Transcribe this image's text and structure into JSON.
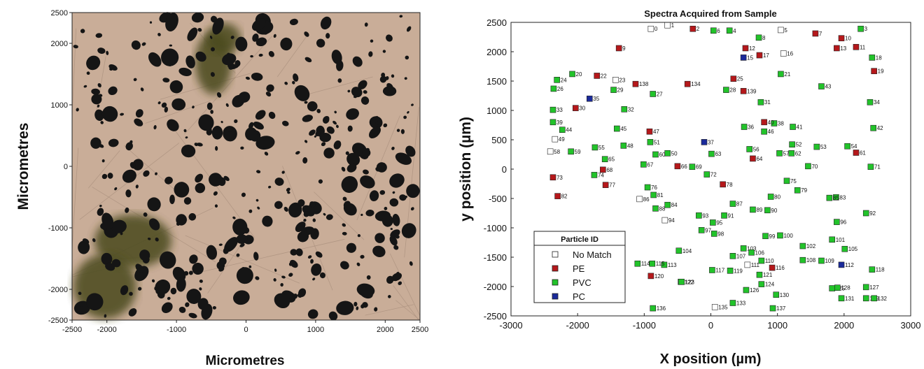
{
  "colors": {
    "no_match": "#ffffff",
    "pe": "#b5181b",
    "pvc": "#22c32a",
    "pc": "#1a2a9a",
    "micro_bg": "#c9ad98",
    "micro_particle": "#151515",
    "micro_green": "#4a4a1a"
  },
  "chart_data": [
    {
      "type": "image",
      "xlabel": "Micrometres",
      "ylabel": "Micrometres",
      "xlim": [
        -2500,
        2500
      ],
      "ylim": [
        -2500,
        2500
      ],
      "x_ticks": [
        "-2500",
        "-2000",
        "-1000",
        "0",
        "1000",
        "2000",
        "2500"
      ],
      "y_ticks": [
        "2500",
        "2000",
        "1000",
        "0",
        "-1000",
        "-2000",
        "-2500"
      ]
    },
    {
      "type": "scatter",
      "title": "Spectra Acquired from Sample",
      "xlabel": "X position (µm)",
      "ylabel": "y position (µm)",
      "xlim": [
        -3000,
        3000
      ],
      "ylim": [
        -2500,
        2500
      ],
      "x_ticks": [
        "-3000",
        "-2000",
        "-1000",
        "0",
        "1000",
        "2000",
        "3000"
      ],
      "y_ticks": [
        "2500",
        "2000",
        "1500",
        "1000",
        "500",
        "0",
        "-500",
        "-1000",
        "-1500",
        "-2000",
        "-2500"
      ],
      "legend_title": "Particle ID",
      "legend_position": "bottom-left",
      "series": [
        {
          "name": "No Match",
          "key": "no_match"
        },
        {
          "name": "PE",
          "key": "pe"
        },
        {
          "name": "PVC",
          "key": "pvc"
        },
        {
          "name": "PC",
          "key": "pc"
        }
      ],
      "points": [
        {
          "id": "0",
          "t": "no_match",
          "x": -900,
          "y": 2390
        },
        {
          "id": "1",
          "t": "no_match",
          "x": -650,
          "y": 2450
        },
        {
          "id": "2",
          "t": "pe",
          "x": -270,
          "y": 2390
        },
        {
          "id": "3",
          "t": "pvc",
          "x": 2250,
          "y": 2390
        },
        {
          "id": "4",
          "t": "pvc",
          "x": 280,
          "y": 2360
        },
        {
          "id": "5",
          "t": "no_match",
          "x": 1050,
          "y": 2370
        },
        {
          "id": "6",
          "t": "pvc",
          "x": 40,
          "y": 2360
        },
        {
          "id": "7",
          "t": "pe",
          "x": 1570,
          "y": 2310
        },
        {
          "id": "8",
          "t": "pvc",
          "x": 720,
          "y": 2240
        },
        {
          "id": "9",
          "t": "pe",
          "x": -1380,
          "y": 2060
        },
        {
          "id": "10",
          "t": "pe",
          "x": 1960,
          "y": 2230
        },
        {
          "id": "11",
          "t": "pe",
          "x": 2180,
          "y": 2080
        },
        {
          "id": "12",
          "t": "pe",
          "x": 520,
          "y": 2060
        },
        {
          "id": "13",
          "t": "pe",
          "x": 1890,
          "y": 2060
        },
        {
          "id": "15",
          "t": "pc",
          "x": 490,
          "y": 1900
        },
        {
          "id": "16",
          "t": "no_match",
          "x": 1090,
          "y": 1970
        },
        {
          "id": "17",
          "t": "pe",
          "x": 730,
          "y": 1940
        },
        {
          "id": "18",
          "t": "pvc",
          "x": 2420,
          "y": 1900
        },
        {
          "id": "19",
          "t": "pe",
          "x": 2450,
          "y": 1670
        },
        {
          "id": "20",
          "t": "pvc",
          "x": -2080,
          "y": 1620
        },
        {
          "id": "21",
          "t": "pvc",
          "x": 1050,
          "y": 1620
        },
        {
          "id": "22",
          "t": "pe",
          "x": -1710,
          "y": 1590
        },
        {
          "id": "23",
          "t": "no_match",
          "x": -1430,
          "y": 1520
        },
        {
          "id": "24",
          "t": "pvc",
          "x": -2310,
          "y": 1520
        },
        {
          "id": "25",
          "t": "pe",
          "x": 340,
          "y": 1540
        },
        {
          "id": "26",
          "t": "pvc",
          "x": -2360,
          "y": 1370
        },
        {
          "id": "27",
          "t": "pvc",
          "x": -870,
          "y": 1280
        },
        {
          "id": "28",
          "t": "pvc",
          "x": 230,
          "y": 1350
        },
        {
          "id": "29",
          "t": "pvc",
          "x": -1460,
          "y": 1350
        },
        {
          "id": "30",
          "t": "pe",
          "x": -2030,
          "y": 1040
        },
        {
          "id": "31",
          "t": "pvc",
          "x": 750,
          "y": 1140
        },
        {
          "id": "32",
          "t": "pvc",
          "x": -1300,
          "y": 1020
        },
        {
          "id": "33",
          "t": "pvc",
          "x": -2370,
          "y": 1010
        },
        {
          "id": "34",
          "t": "pvc",
          "x": 2390,
          "y": 1140
        },
        {
          "id": "35",
          "t": "pc",
          "x": -1820,
          "y": 1200
        },
        {
          "id": "36",
          "t": "pvc",
          "x": 500,
          "y": 720
        },
        {
          "id": "37",
          "t": "pc",
          "x": -100,
          "y": 460
        },
        {
          "id": "38",
          "t": "pvc",
          "x": 950,
          "y": 780
        },
        {
          "id": "39",
          "t": "pvc",
          "x": -2370,
          "y": 800
        },
        {
          "id": "40",
          "t": "pe",
          "x": 800,
          "y": 800
        },
        {
          "id": "41",
          "t": "pvc",
          "x": 1230,
          "y": 720
        },
        {
          "id": "42",
          "t": "pvc",
          "x": 2440,
          "y": 700
        },
        {
          "id": "43",
          "t": "pvc",
          "x": 1660,
          "y": 1410
        },
        {
          "id": "44",
          "t": "pvc",
          "x": -2230,
          "y": 670
        },
        {
          "id": "45",
          "t": "pvc",
          "x": -1410,
          "y": 690
        },
        {
          "id": "46",
          "t": "pvc",
          "x": 800,
          "y": 640
        },
        {
          "id": "47",
          "t": "pe",
          "x": -920,
          "y": 640
        },
        {
          "id": "48",
          "t": "pvc",
          "x": -1310,
          "y": 400
        },
        {
          "id": "49",
          "t": "no_match",
          "x": -2340,
          "y": 510
        },
        {
          "id": "50",
          "t": "pvc",
          "x": -650,
          "y": 270
        },
        {
          "id": "51",
          "t": "pvc",
          "x": -910,
          "y": 460
        },
        {
          "id": "52",
          "t": "pvc",
          "x": 1220,
          "y": 420
        },
        {
          "id": "53",
          "t": "pvc",
          "x": 1590,
          "y": 380
        },
        {
          "id": "54",
          "t": "pvc",
          "x": 2050,
          "y": 390
        },
        {
          "id": "55",
          "t": "pvc",
          "x": -1740,
          "y": 370
        },
        {
          "id": "56",
          "t": "pvc",
          "x": 580,
          "y": 340
        },
        {
          "id": "57",
          "t": "pvc",
          "x": 1030,
          "y": 270
        },
        {
          "id": "58",
          "t": "no_match",
          "x": -2410,
          "y": 300
        },
        {
          "id": "59",
          "t": "pvc",
          "x": -2100,
          "y": 300
        },
        {
          "id": "60",
          "t": "pvc",
          "x": -830,
          "y": 250
        },
        {
          "id": "61",
          "t": "pe",
          "x": 2180,
          "y": 280
        },
        {
          "id": "62",
          "t": "pvc",
          "x": 1210,
          "y": 270
        },
        {
          "id": "63",
          "t": "pvc",
          "x": 10,
          "y": 260
        },
        {
          "id": "64",
          "t": "pe",
          "x": 630,
          "y": 180
        },
        {
          "id": "65",
          "t": "pvc",
          "x": -1590,
          "y": 170
        },
        {
          "id": "66",
          "t": "pe",
          "x": -500,
          "y": 50
        },
        {
          "id": "67",
          "t": "pvc",
          "x": -1010,
          "y": 80
        },
        {
          "id": "68",
          "t": "pe",
          "x": -1620,
          "y": -10
        },
        {
          "id": "69",
          "t": "pvc",
          "x": -280,
          "y": 40
        },
        {
          "id": "70",
          "t": "pvc",
          "x": 1460,
          "y": 50
        },
        {
          "id": "71",
          "t": "pvc",
          "x": 2400,
          "y": 40
        },
        {
          "id": "72",
          "t": "pvc",
          "x": -60,
          "y": -90
        },
        {
          "id": "73",
          "t": "pe",
          "x": -2370,
          "y": -140
        },
        {
          "id": "74",
          "t": "pvc",
          "x": -1750,
          "y": -100
        },
        {
          "id": "75",
          "t": "pvc",
          "x": 1140,
          "y": -200
        },
        {
          "id": "76",
          "t": "pvc",
          "x": -950,
          "y": -310
        },
        {
          "id": "77",
          "t": "pe",
          "x": -1580,
          "y": -270
        },
        {
          "id": "78",
          "t": "pe",
          "x": 180,
          "y": -260
        },
        {
          "id": "79",
          "t": "pvc",
          "x": 1300,
          "y": -360
        },
        {
          "id": "80",
          "t": "pvc",
          "x": 900,
          "y": -470
        },
        {
          "id": "81",
          "t": "pvc",
          "x": -860,
          "y": -440
        },
        {
          "id": "82",
          "t": "pe",
          "x": -2300,
          "y": -460
        },
        {
          "id": "83",
          "t": "pvc",
          "x": 1880,
          "y": -480
        },
        {
          "id": "84",
          "t": "pvc",
          "x": -650,
          "y": -610
        },
        {
          "id": "85",
          "t": "pvc",
          "x": 1780,
          "y": -490
        },
        {
          "id": "86",
          "t": "no_match",
          "x": -1070,
          "y": -510
        },
        {
          "id": "87",
          "t": "pvc",
          "x": 330,
          "y": -590
        },
        {
          "id": "88",
          "t": "pvc",
          "x": -830,
          "y": -670
        },
        {
          "id": "89",
          "t": "pvc",
          "x": 630,
          "y": -690
        },
        {
          "id": "90",
          "t": "pvc",
          "x": 850,
          "y": -700
        },
        {
          "id": "91",
          "t": "pvc",
          "x": 200,
          "y": -790
        },
        {
          "id": "92",
          "t": "pvc",
          "x": 2330,
          "y": -750
        },
        {
          "id": "93",
          "t": "pvc",
          "x": -180,
          "y": -790
        },
        {
          "id": "94",
          "t": "no_match",
          "x": -690,
          "y": -870
        },
        {
          "id": "95",
          "t": "pvc",
          "x": 30,
          "y": -910
        },
        {
          "id": "96",
          "t": "pvc",
          "x": 1890,
          "y": -900
        },
        {
          "id": "97",
          "t": "pvc",
          "x": -140,
          "y": -1040
        },
        {
          "id": "98",
          "t": "pvc",
          "x": 50,
          "y": -1100
        },
        {
          "id": "99",
          "t": "pvc",
          "x": 820,
          "y": -1140
        },
        {
          "id": "100",
          "t": "pvc",
          "x": 1040,
          "y": -1130
        },
        {
          "id": "101",
          "t": "pvc",
          "x": 1820,
          "y": -1200
        },
        {
          "id": "102",
          "t": "pvc",
          "x": 1380,
          "y": -1310
        },
        {
          "id": "103",
          "t": "pvc",
          "x": 490,
          "y": -1350
        },
        {
          "id": "104",
          "t": "pvc",
          "x": -480,
          "y": -1390
        },
        {
          "id": "105",
          "t": "pvc",
          "x": 2010,
          "y": -1360
        },
        {
          "id": "106",
          "t": "pvc",
          "x": 610,
          "y": -1420
        },
        {
          "id": "107",
          "t": "pvc",
          "x": 330,
          "y": -1480
        },
        {
          "id": "108",
          "t": "pvc",
          "x": 1380,
          "y": -1550
        },
        {
          "id": "109",
          "t": "pvc",
          "x": 1660,
          "y": -1560
        },
        {
          "id": "110",
          "t": "pvc",
          "x": 760,
          "y": -1560
        },
        {
          "id": "111",
          "t": "no_match",
          "x": 550,
          "y": -1630
        },
        {
          "id": "112",
          "t": "pc",
          "x": 1960,
          "y": -1630
        },
        {
          "id": "113",
          "t": "pvc",
          "x": -700,
          "y": -1630
        },
        {
          "id": "114",
          "t": "pvc",
          "x": -1100,
          "y": -1610
        },
        {
          "id": "115",
          "t": "pvc",
          "x": -880,
          "y": -1610
        },
        {
          "id": "116",
          "t": "pe",
          "x": 920,
          "y": -1680
        },
        {
          "id": "117",
          "t": "pvc",
          "x": 20,
          "y": -1720
        },
        {
          "id": "118",
          "t": "pvc",
          "x": 2420,
          "y": -1710
        },
        {
          "id": "119",
          "t": "pvc",
          "x": 290,
          "y": -1730
        },
        {
          "id": "120",
          "t": "pe",
          "x": -900,
          "y": -1820
        },
        {
          "id": "121",
          "t": "pvc",
          "x": 730,
          "y": -1800
        },
        {
          "id": "122",
          "t": "pvc",
          "x": -450,
          "y": -1920
        },
        {
          "id": "123",
          "t": "pvc",
          "x": -440,
          "y": -1920
        },
        {
          "id": "124",
          "t": "pvc",
          "x": 760,
          "y": -1960
        },
        {
          "id": "125",
          "t": "pvc",
          "x": 1820,
          "y": -2030
        },
        {
          "id": "126",
          "t": "pvc",
          "x": 530,
          "y": -2060
        },
        {
          "id": "127",
          "t": "pvc",
          "x": 2330,
          "y": -2010
        },
        {
          "id": "128",
          "t": "pvc",
          "x": 1900,
          "y": -2020
        },
        {
          "id": "129",
          "t": "pvc",
          "x": 2330,
          "y": -2200
        },
        {
          "id": "130",
          "t": "pvc",
          "x": 980,
          "y": -2140
        },
        {
          "id": "131",
          "t": "pvc",
          "x": 1960,
          "y": -2200
        },
        {
          "id": "132",
          "t": "pvc",
          "x": 2450,
          "y": -2200
        },
        {
          "id": "133",
          "t": "pvc",
          "x": 330,
          "y": -2280
        },
        {
          "id": "134",
          "t": "pe",
          "x": -350,
          "y": 1450
        },
        {
          "id": "135",
          "t": "no_match",
          "x": 60,
          "y": -2350
        },
        {
          "id": "136",
          "t": "pvc",
          "x": -870,
          "y": -2370
        },
        {
          "id": "137",
          "t": "pvc",
          "x": 930,
          "y": -2370
        },
        {
          "id": "138",
          "t": "pe",
          "x": -1130,
          "y": 1450
        },
        {
          "id": "139",
          "t": "pe",
          "x": 490,
          "y": 1330
        }
      ]
    }
  ]
}
